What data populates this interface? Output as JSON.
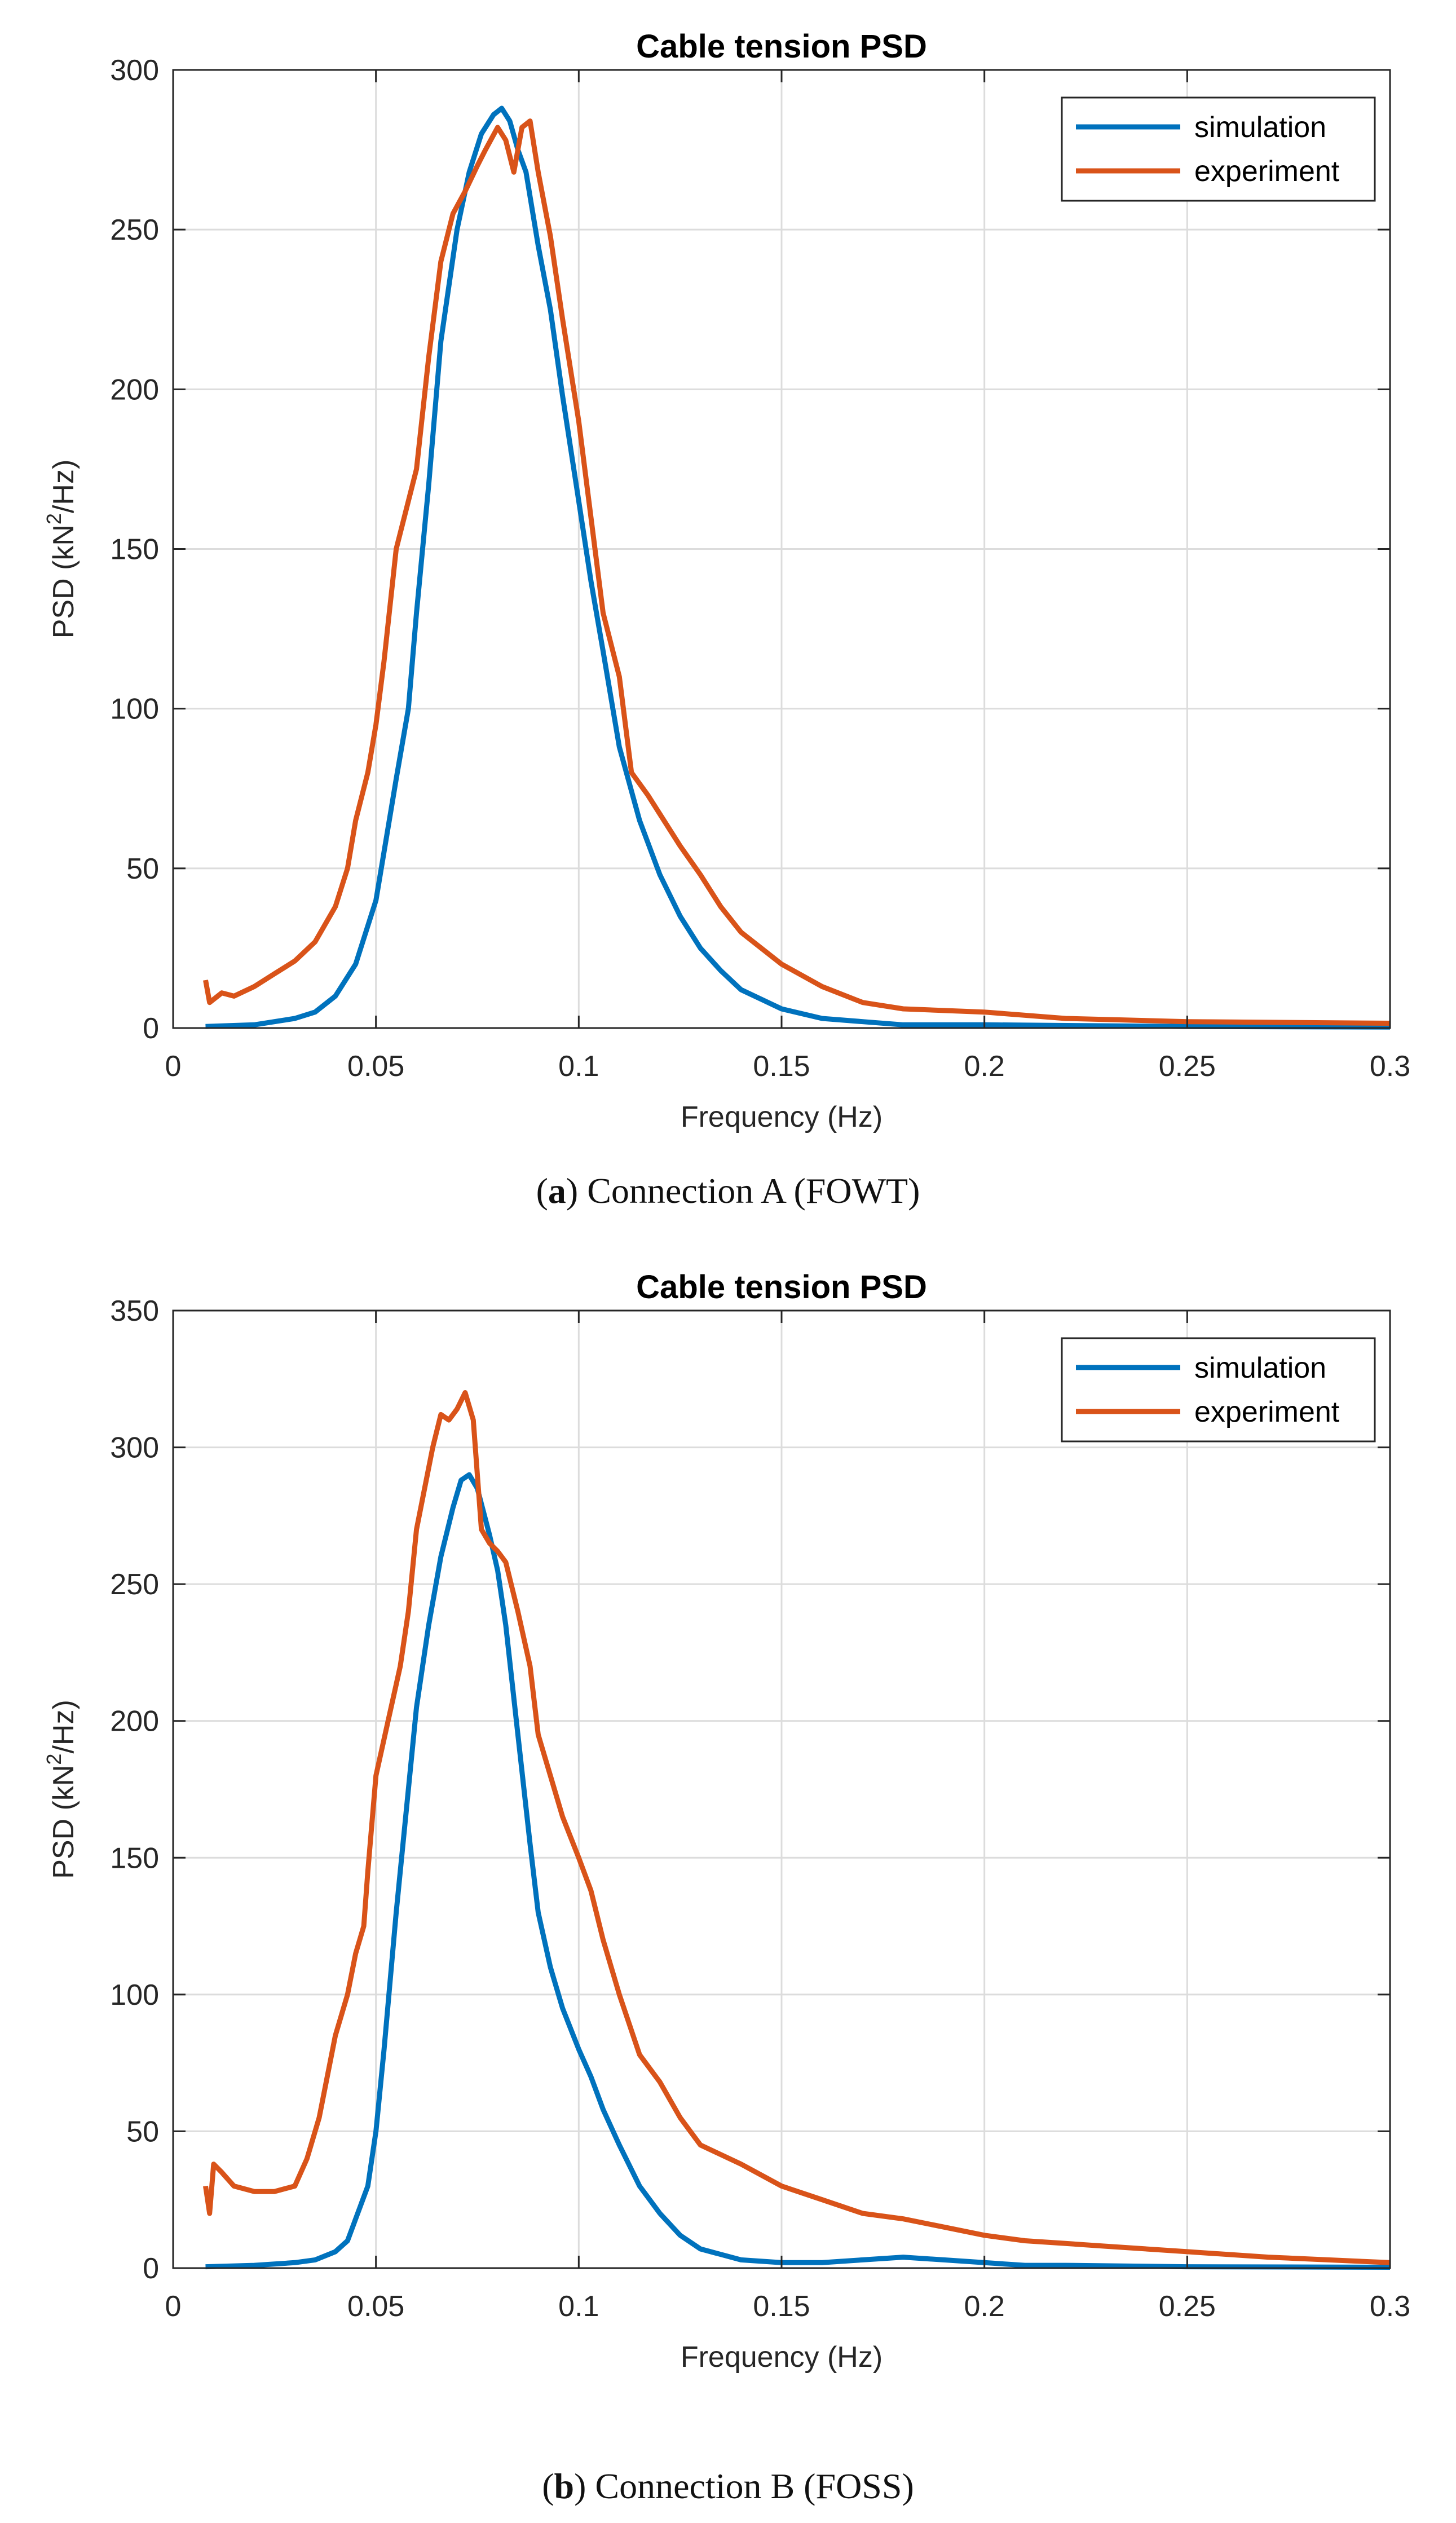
{
  "colors": {
    "simulation": "#0072BD",
    "experiment": "#D95319",
    "grid": "#DCDCDC",
    "axis": "#262626"
  },
  "chart_data": [
    {
      "type": "line",
      "panel": "a",
      "title": "Cable tension PSD",
      "xlabel": "Frequency (Hz)",
      "ylabel_main": "PSD (kN",
      "ylabel_sup": "2",
      "ylabel_rest": "/Hz)",
      "xlim": [
        0,
        0.3
      ],
      "ylim": [
        0,
        300
      ],
      "xticks": [
        0,
        0.05,
        0.1,
        0.15,
        0.2,
        0.25,
        0.3
      ],
      "xtick_labels": [
        "0",
        "0.05",
        "0.1",
        "0.15",
        "0.2",
        "0.25",
        "0.3"
      ],
      "yticks": [
        0,
        50,
        100,
        150,
        200,
        250,
        300
      ],
      "ytick_labels": [
        "0",
        "50",
        "100",
        "150",
        "200",
        "250",
        "300"
      ],
      "grid": true,
      "legend_position": "top-right",
      "caption_letter": "a",
      "caption_text": "Connection A (FOWT)",
      "series": [
        {
          "name": "simulation",
          "x": [
            0.008,
            0.02,
            0.03,
            0.035,
            0.04,
            0.045,
            0.05,
            0.055,
            0.058,
            0.06,
            0.063,
            0.066,
            0.07,
            0.073,
            0.076,
            0.079,
            0.081,
            0.083,
            0.085,
            0.087,
            0.09,
            0.093,
            0.096,
            0.1,
            0.103,
            0.106,
            0.11,
            0.115,
            0.12,
            0.125,
            0.13,
            0.135,
            0.14,
            0.15,
            0.16,
            0.17,
            0.18,
            0.2,
            0.25,
            0.3
          ],
          "y": [
            0.5,
            1,
            3,
            5,
            10,
            20,
            40,
            78,
            100,
            130,
            170,
            215,
            250,
            268,
            280,
            286,
            288,
            284,
            275,
            268,
            245,
            225,
            198,
            165,
            140,
            118,
            88,
            65,
            48,
            35,
            25,
            18,
            12,
            6,
            3,
            2,
            1,
            1,
            0.5,
            0.3
          ]
        },
        {
          "name": "experiment",
          "x": [
            0.008,
            0.009,
            0.012,
            0.015,
            0.02,
            0.025,
            0.03,
            0.035,
            0.04,
            0.043,
            0.045,
            0.048,
            0.05,
            0.052,
            0.055,
            0.058,
            0.06,
            0.063,
            0.066,
            0.069,
            0.072,
            0.075,
            0.077,
            0.08,
            0.082,
            0.084,
            0.086,
            0.088,
            0.09,
            0.093,
            0.096,
            0.1,
            0.103,
            0.106,
            0.11,
            0.113,
            0.117,
            0.12,
            0.125,
            0.13,
            0.135,
            0.14,
            0.15,
            0.16,
            0.17,
            0.18,
            0.2,
            0.22,
            0.25,
            0.3
          ],
          "y": [
            15,
            8,
            11,
            10,
            13,
            17,
            21,
            27,
            38,
            50,
            65,
            80,
            95,
            115,
            150,
            165,
            175,
            210,
            240,
            255,
            262,
            270,
            275,
            282,
            278,
            268,
            282,
            284,
            268,
            248,
            222,
            190,
            160,
            130,
            110,
            80,
            73,
            67,
            57,
            48,
            38,
            30,
            20,
            13,
            8,
            6,
            5,
            3,
            2,
            1.5
          ]
        }
      ]
    },
    {
      "type": "line",
      "panel": "b",
      "title": "Cable tension PSD",
      "xlabel": "Frequency (Hz)",
      "ylabel_main": "PSD (kN",
      "ylabel_sup": "2",
      "ylabel_rest": "/Hz)",
      "xlim": [
        0,
        0.3
      ],
      "ylim": [
        0,
        350
      ],
      "xticks": [
        0,
        0.05,
        0.1,
        0.15,
        0.2,
        0.25,
        0.3
      ],
      "xtick_labels": [
        "0",
        "0.05",
        "0.1",
        "0.15",
        "0.2",
        "0.25",
        "0.3"
      ],
      "yticks": [
        0,
        50,
        100,
        150,
        200,
        250,
        300,
        350
      ],
      "ytick_labels": [
        "0",
        "50",
        "100",
        "150",
        "200",
        "250",
        "300",
        "350"
      ],
      "grid": true,
      "legend_position": "top-right",
      "caption_letter": "b",
      "caption_text": "Connection B (FOSS)",
      "series": [
        {
          "name": "simulation",
          "x": [
            0.008,
            0.02,
            0.03,
            0.035,
            0.04,
            0.043,
            0.045,
            0.048,
            0.05,
            0.052,
            0.055,
            0.058,
            0.06,
            0.063,
            0.066,
            0.069,
            0.071,
            0.073,
            0.075,
            0.078,
            0.08,
            0.082,
            0.085,
            0.088,
            0.09,
            0.093,
            0.096,
            0.1,
            0.103,
            0.106,
            0.11,
            0.115,
            0.12,
            0.125,
            0.13,
            0.14,
            0.15,
            0.16,
            0.17,
            0.18,
            0.19,
            0.2,
            0.21,
            0.22,
            0.25,
            0.3
          ],
          "y": [
            0.5,
            1,
            2,
            3,
            6,
            10,
            18,
            30,
            50,
            80,
            130,
            175,
            205,
            235,
            260,
            278,
            288,
            290,
            285,
            268,
            255,
            235,
            195,
            155,
            130,
            110,
            95,
            80,
            70,
            58,
            45,
            30,
            20,
            12,
            7,
            3,
            2,
            2,
            3,
            4,
            3,
            2,
            1,
            1,
            0.5,
            0.3
          ]
        },
        {
          "name": "experiment",
          "x": [
            0.008,
            0.009,
            0.01,
            0.012,
            0.015,
            0.02,
            0.025,
            0.03,
            0.033,
            0.036,
            0.04,
            0.043,
            0.045,
            0.047,
            0.048,
            0.05,
            0.053,
            0.056,
            0.058,
            0.06,
            0.062,
            0.064,
            0.066,
            0.068,
            0.07,
            0.072,
            0.074,
            0.076,
            0.078,
            0.08,
            0.082,
            0.085,
            0.088,
            0.09,
            0.093,
            0.096,
            0.1,
            0.103,
            0.106,
            0.11,
            0.115,
            0.12,
            0.125,
            0.13,
            0.14,
            0.15,
            0.16,
            0.17,
            0.18,
            0.19,
            0.2,
            0.21,
            0.22,
            0.23,
            0.25,
            0.27,
            0.3
          ],
          "y": [
            30,
            20,
            38,
            35,
            30,
            28,
            28,
            30,
            40,
            55,
            85,
            100,
            115,
            125,
            145,
            180,
            200,
            220,
            240,
            270,
            285,
            300,
            312,
            310,
            314,
            320,
            310,
            270,
            265,
            262,
            258,
            240,
            220,
            195,
            180,
            165,
            150,
            138,
            120,
            100,
            78,
            68,
            55,
            45,
            38,
            30,
            25,
            20,
            18,
            15,
            12,
            10,
            9,
            8,
            6,
            4,
            2
          ]
        }
      ]
    }
  ]
}
